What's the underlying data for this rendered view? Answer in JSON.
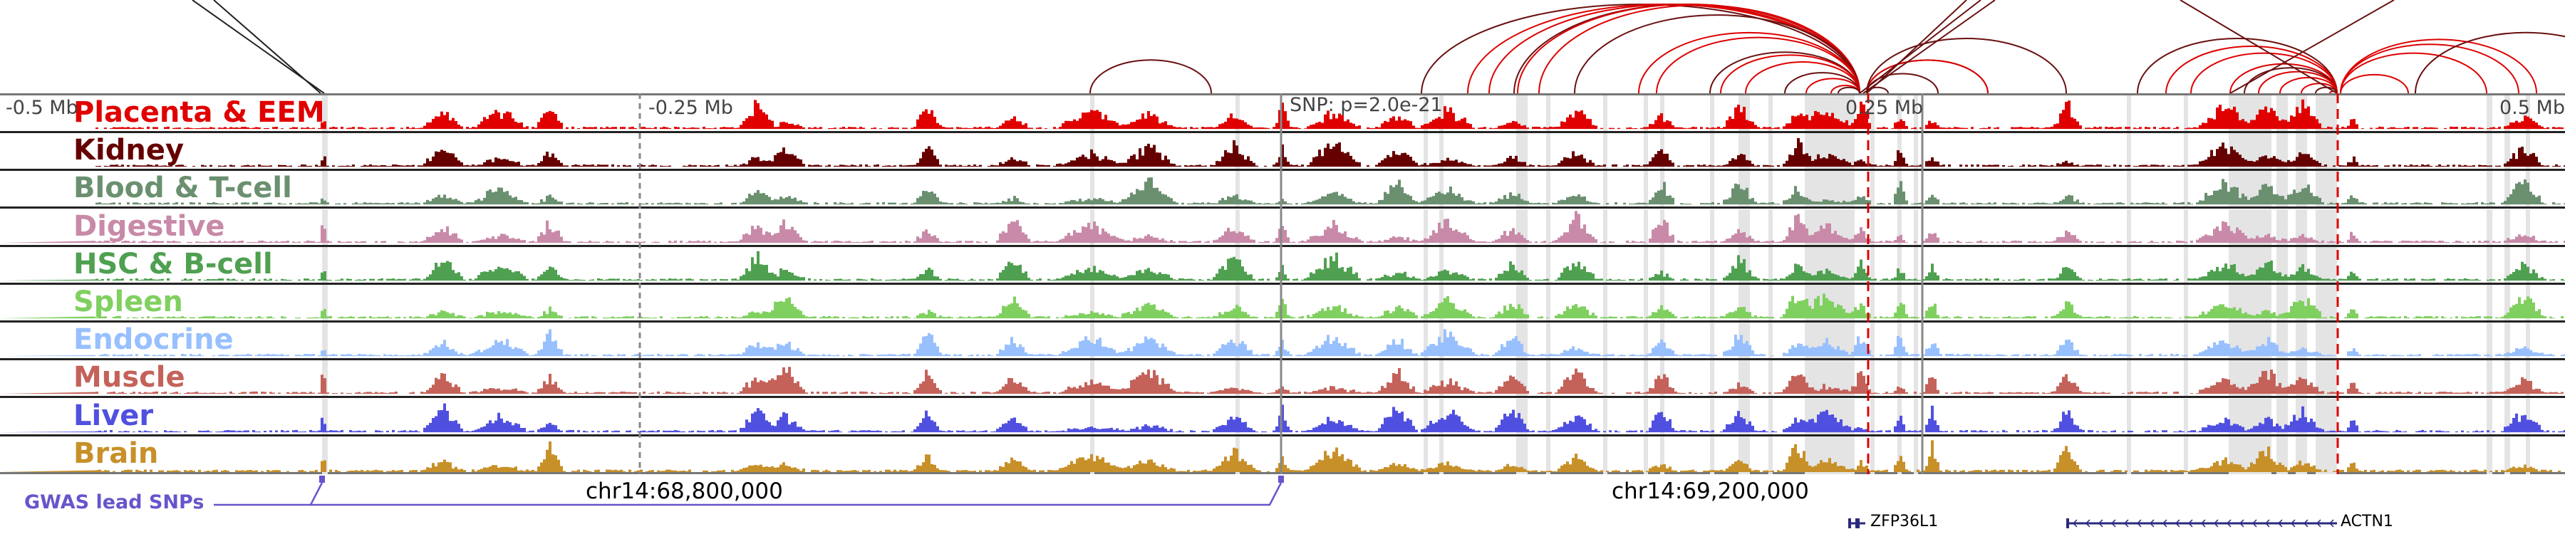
{
  "axis": {
    "left_label": "-0.5 Mb",
    "minus_quarter_label": "-0.25 Mb",
    "snp_label": "SNP: p=2.0e-21",
    "plus_quarter_label": "0.25 Mb",
    "right_label": "0.5 Mb"
  },
  "tracks": [
    {
      "label": "Placenta & EEM",
      "color": "#e00000"
    },
    {
      "label": "Kidney",
      "color": "#660000"
    },
    {
      "label": "Blood & T-cell",
      "color": "#6a9070"
    },
    {
      "label": "Digestive",
      "color": "#c88aa8"
    },
    {
      "label": "HSC & B-cell",
      "color": "#4fa050"
    },
    {
      "label": "Spleen",
      "color": "#80d060"
    },
    {
      "label": "Endocrine",
      "color": "#98c0ff"
    },
    {
      "label": "Muscle",
      "color": "#c4625a"
    },
    {
      "label": "Liver",
      "color": "#5050e0"
    },
    {
      "label": "Brain",
      "color": "#c89028"
    }
  ],
  "gwas": {
    "label": "GWAS lead SNPs",
    "color": "#6655cc"
  },
  "coordinates": [
    "chr14:68,800,000",
    "chr14:69,200,000"
  ],
  "genes": [
    {
      "name": "ZFP36L1",
      "strand": "-"
    },
    {
      "name": "ACTN1",
      "strand": "-"
    }
  ],
  "colors": {
    "arc_red": "#dd0000",
    "arc_dark": "#6a1010",
    "highlight": "#e4e4e4",
    "gene": "#2a2a80"
  }
}
